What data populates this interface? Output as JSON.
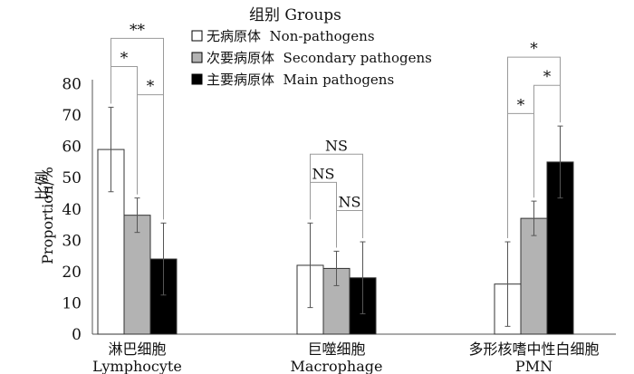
{
  "chart_data": {
    "type": "bar",
    "legend": {
      "title": "组别 Groups",
      "position": "top-center",
      "entries": [
        "无病原体  Non-pathogens",
        "次要病原体  Secondary pathogens",
        "主要病原体  Main pathogens"
      ]
    },
    "ylabel_cn": "比例",
    "ylabel_en": "Proportion/%",
    "ylim": [
      0,
      80
    ],
    "yticks": [
      0,
      10,
      20,
      30,
      40,
      50,
      60,
      70,
      80
    ],
    "categories": [
      {
        "cn": "淋巴细胞",
        "en": "Lymphocyte"
      },
      {
        "cn": "巨噬细胞",
        "en": "Macrophage"
      },
      {
        "cn": "多形核嗜中性白细胞",
        "en": "PMN"
      }
    ],
    "series": [
      {
        "name": "无病原体  Non-pathogens",
        "color": "#ffffff",
        "values": [
          59,
          22,
          16
        ],
        "errors": [
          13.5,
          13.5,
          13.5
        ]
      },
      {
        "name": "次要病原体  Secondary pathogens",
        "color": "#b3b3b3",
        "values": [
          38,
          21,
          37
        ],
        "errors": [
          5.5,
          5.5,
          5.5
        ]
      },
      {
        "name": "主要病原体  Main pathogens",
        "color": "#000000",
        "values": [
          24,
          18,
          55
        ],
        "errors": [
          11.5,
          11.5,
          11.5
        ]
      }
    ],
    "significance": [
      {
        "category": 0,
        "from": 0,
        "to": 1,
        "label": "*",
        "level": 1
      },
      {
        "category": 0,
        "from": 0,
        "to": 2,
        "label": "**",
        "level": 2
      },
      {
        "category": 0,
        "from": 1,
        "to": 2,
        "label": "*",
        "level": 0
      },
      {
        "category": 1,
        "from": 0,
        "to": 1,
        "label": "NS",
        "level": 1
      },
      {
        "category": 1,
        "from": 0,
        "to": 2,
        "label": "NS",
        "level": 2
      },
      {
        "category": 1,
        "from": 1,
        "to": 2,
        "label": "NS",
        "level": 0
      },
      {
        "category": 2,
        "from": 0,
        "to": 1,
        "label": "*",
        "level": 0
      },
      {
        "category": 2,
        "from": 1,
        "to": 2,
        "label": "*",
        "level": 1
      },
      {
        "category": 2,
        "from": 0,
        "to": 2,
        "label": "*",
        "level": 2
      }
    ]
  }
}
